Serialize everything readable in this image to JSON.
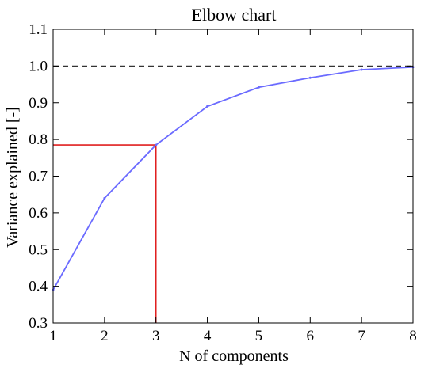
{
  "chart_data": {
    "type": "line",
    "title": "Elbow chart",
    "xlabel": "N of components",
    "ylabel": "Variance explained [-]",
    "xlim": [
      1,
      8
    ],
    "ylim": [
      0.3,
      1.1
    ],
    "x_ticks": [
      "1",
      "2",
      "3",
      "4",
      "5",
      "6",
      "7",
      "8"
    ],
    "y_ticks": [
      "0.3",
      "0.4",
      "0.5",
      "0.6",
      "0.7",
      "0.8",
      "0.9",
      "1.0",
      "1.1"
    ],
    "grid": false,
    "series": [
      {
        "x": [
          1,
          2,
          3,
          4,
          5,
          6,
          7,
          8
        ],
        "values": [
          0.39,
          0.64,
          0.785,
          0.89,
          0.942,
          0.968,
          0.99,
          0.997
        ],
        "color": "#6b6bff"
      }
    ],
    "reference_line": {
      "y": 1.0,
      "style": "dashed",
      "color": "#333333"
    },
    "highlight": {
      "x": 3,
      "y": 0.785,
      "color": "#e02020"
    }
  }
}
